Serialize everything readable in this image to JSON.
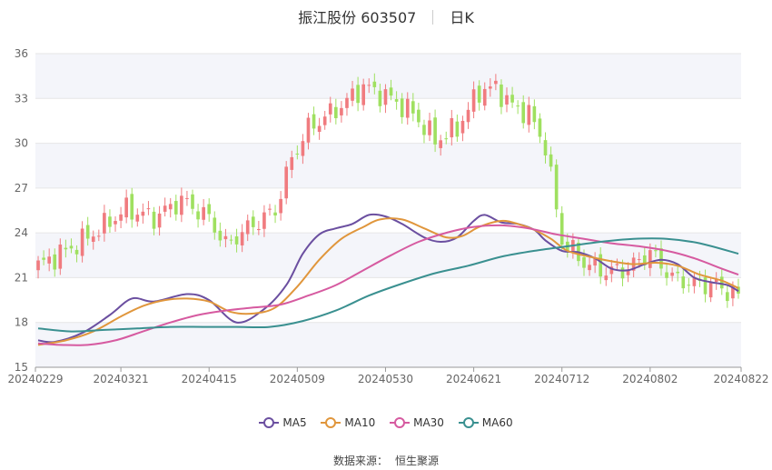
{
  "header": {
    "title": "振江股份 603507",
    "period": "日K"
  },
  "footer": {
    "label": "数据来源：",
    "provider": "恒生聚源"
  },
  "colors": {
    "up": "#f07b7f",
    "down": "#9fe060",
    "MA5": "#6b4fa0",
    "MA10": "#e0963c",
    "MA30": "#d65aa0",
    "MA60": "#3a9090",
    "grid": "#e6e6e6",
    "band": "#f4f5fa"
  },
  "chart_data": {
    "type": "candlestick",
    "title": "振江股份 603507",
    "ylim": [
      15,
      36
    ],
    "yticks": [
      15,
      18,
      21,
      24,
      27,
      30,
      33,
      36
    ],
    "xtick_labels": [
      "20240229",
      "20240321",
      "20240415",
      "20240509",
      "20240530",
      "20240621",
      "20240712",
      "20240802",
      "20240822"
    ],
    "xtick_index": [
      0,
      15,
      31,
      47,
      63,
      79,
      95,
      111,
      127
    ],
    "num_days": 128,
    "candle_anchors": [
      [
        0,
        21.8
      ],
      [
        6,
        23.0
      ],
      [
        11,
        24.2
      ],
      [
        16,
        25.6
      ],
      [
        21,
        25.0
      ],
      [
        26,
        26.2
      ],
      [
        31,
        25.0
      ],
      [
        34,
        23.2
      ],
      [
        38,
        24.3
      ],
      [
        43,
        25.5
      ],
      [
        46,
        29.0
      ],
      [
        49,
        31.0
      ],
      [
        55,
        32.5
      ],
      [
        59,
        33.8
      ],
      [
        64,
        33.0
      ],
      [
        68,
        32.0
      ],
      [
        72,
        30.2
      ],
      [
        76,
        31.0
      ],
      [
        80,
        33.5
      ],
      [
        83,
        33.7
      ],
      [
        86,
        32.5
      ],
      [
        89,
        32.0
      ],
      [
        92,
        29.8
      ],
      [
        95,
        23.5
      ],
      [
        99,
        22.0
      ],
      [
        103,
        21.4
      ],
      [
        107,
        21.6
      ],
      [
        111,
        22.7
      ],
      [
        115,
        21.0
      ],
      [
        119,
        20.6
      ],
      [
        123,
        20.5
      ],
      [
        127,
        19.7
      ]
    ],
    "legend": [
      "MA5",
      "MA10",
      "MA30",
      "MA60"
    ],
    "series": [
      {
        "name": "MA5",
        "points": [
          [
            0,
            16.8
          ],
          [
            3,
            16.7
          ],
          [
            8,
            17.3
          ],
          [
            13,
            18.5
          ],
          [
            17,
            19.6
          ],
          [
            21,
            19.4
          ],
          [
            27,
            19.9
          ],
          [
            31,
            19.5
          ],
          [
            36,
            18.0
          ],
          [
            41,
            18.9
          ],
          [
            45,
            20.5
          ],
          [
            48,
            22.6
          ],
          [
            51,
            23.9
          ],
          [
            54,
            24.3
          ],
          [
            57,
            24.6
          ],
          [
            60,
            25.2
          ],
          [
            63,
            25.1
          ],
          [
            66,
            24.6
          ],
          [
            70,
            23.7
          ],
          [
            73,
            23.4
          ],
          [
            76,
            23.7
          ],
          [
            79,
            24.8
          ],
          [
            81,
            25.2
          ],
          [
            84,
            24.7
          ],
          [
            87,
            24.6
          ],
          [
            90,
            24.2
          ],
          [
            92,
            23.5
          ],
          [
            95,
            22.8
          ],
          [
            98,
            22.7
          ],
          [
            101,
            22.3
          ],
          [
            104,
            21.6
          ],
          [
            107,
            21.5
          ],
          [
            110,
            21.9
          ],
          [
            113,
            22.2
          ],
          [
            116,
            21.9
          ],
          [
            119,
            21.0
          ],
          [
            122,
            20.7
          ],
          [
            125,
            20.5
          ],
          [
            127,
            20.1
          ]
        ]
      },
      {
        "name": "MA10",
        "points": [
          [
            0,
            16.5
          ],
          [
            5,
            16.8
          ],
          [
            10,
            17.4
          ],
          [
            15,
            18.4
          ],
          [
            19,
            19.1
          ],
          [
            23,
            19.5
          ],
          [
            27,
            19.6
          ],
          [
            31,
            19.4
          ],
          [
            35,
            18.7
          ],
          [
            39,
            18.6
          ],
          [
            43,
            19.0
          ],
          [
            47,
            20.4
          ],
          [
            51,
            22.2
          ],
          [
            55,
            23.6
          ],
          [
            59,
            24.4
          ],
          [
            62,
            24.9
          ],
          [
            66,
            24.9
          ],
          [
            70,
            24.3
          ],
          [
            74,
            23.7
          ],
          [
            77,
            23.8
          ],
          [
            80,
            24.4
          ],
          [
            84,
            24.8
          ],
          [
            87,
            24.6
          ],
          [
            90,
            24.2
          ],
          [
            93,
            23.6
          ],
          [
            96,
            22.8
          ],
          [
            100,
            22.4
          ],
          [
            104,
            22.1
          ],
          [
            108,
            21.9
          ],
          [
            112,
            22.0
          ],
          [
            116,
            21.8
          ],
          [
            120,
            21.2
          ],
          [
            124,
            20.8
          ],
          [
            127,
            20.3
          ]
        ]
      },
      {
        "name": "MA30",
        "points": [
          [
            0,
            16.6
          ],
          [
            4,
            16.5
          ],
          [
            9,
            16.5
          ],
          [
            14,
            16.8
          ],
          [
            19,
            17.4
          ],
          [
            24,
            18.0
          ],
          [
            29,
            18.5
          ],
          [
            34,
            18.8
          ],
          [
            39,
            19.0
          ],
          [
            44,
            19.2
          ],
          [
            49,
            19.8
          ],
          [
            54,
            20.5
          ],
          [
            59,
            21.5
          ],
          [
            64,
            22.5
          ],
          [
            69,
            23.4
          ],
          [
            74,
            24.0
          ],
          [
            79,
            24.4
          ],
          [
            84,
            24.5
          ],
          [
            89,
            24.3
          ],
          [
            94,
            23.9
          ],
          [
            99,
            23.6
          ],
          [
            104,
            23.3
          ],
          [
            109,
            23.1
          ],
          [
            114,
            22.8
          ],
          [
            119,
            22.3
          ],
          [
            124,
            21.6
          ],
          [
            127,
            21.2
          ]
        ]
      },
      {
        "name": "MA60",
        "points": [
          [
            0,
            17.6
          ],
          [
            6,
            17.4
          ],
          [
            12,
            17.5
          ],
          [
            18,
            17.6
          ],
          [
            24,
            17.7
          ],
          [
            30,
            17.7
          ],
          [
            36,
            17.7
          ],
          [
            42,
            17.7
          ],
          [
            48,
            18.1
          ],
          [
            54,
            18.8
          ],
          [
            60,
            19.8
          ],
          [
            66,
            20.6
          ],
          [
            72,
            21.3
          ],
          [
            78,
            21.8
          ],
          [
            84,
            22.4
          ],
          [
            90,
            22.8
          ],
          [
            96,
            23.1
          ],
          [
            102,
            23.4
          ],
          [
            108,
            23.6
          ],
          [
            114,
            23.6
          ],
          [
            120,
            23.3
          ],
          [
            127,
            22.6
          ]
        ]
      }
    ]
  }
}
